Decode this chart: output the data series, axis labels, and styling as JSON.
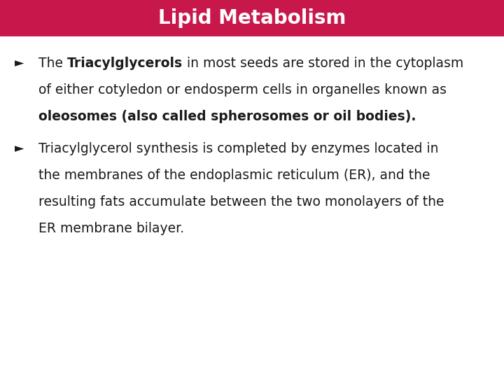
{
  "title": "Lipid Metabolism",
  "title_bg_color": "#C8174B",
  "title_text_color": "#FFFFFF",
  "bg_color": "#FFFFFF",
  "title_fontsize": 20,
  "body_fontsize": 13.5,
  "bullet_color": "#1a1a1a",
  "paragraphs": [
    {
      "lines": [
        [
          {
            "text": "The ",
            "bold": false
          },
          {
            "text": "Triacylglycerols",
            "bold": true
          },
          {
            "text": " in most seeds are stored in the cytoplasm",
            "bold": false
          }
        ],
        [
          {
            "text": "of either cotyledon or endosperm cells in organelles known as",
            "bold": false
          }
        ],
        [
          {
            "text": "oleosomes (also called spherosomes or oil bodies).",
            "bold": true
          }
        ]
      ]
    },
    {
      "lines": [
        [
          {
            "text": "Triacylglycerol synthesis is completed by enzymes located in",
            "bold": false
          }
        ],
        [
          {
            "text": "the membranes of the endoplasmic reticulum (ER), and the",
            "bold": false
          }
        ],
        [
          {
            "text": "resulting fats accumulate between the two monolayers of the",
            "bold": false
          }
        ],
        [
          {
            "text": "ER membrane bilayer.",
            "bold": false
          }
        ]
      ]
    }
  ]
}
